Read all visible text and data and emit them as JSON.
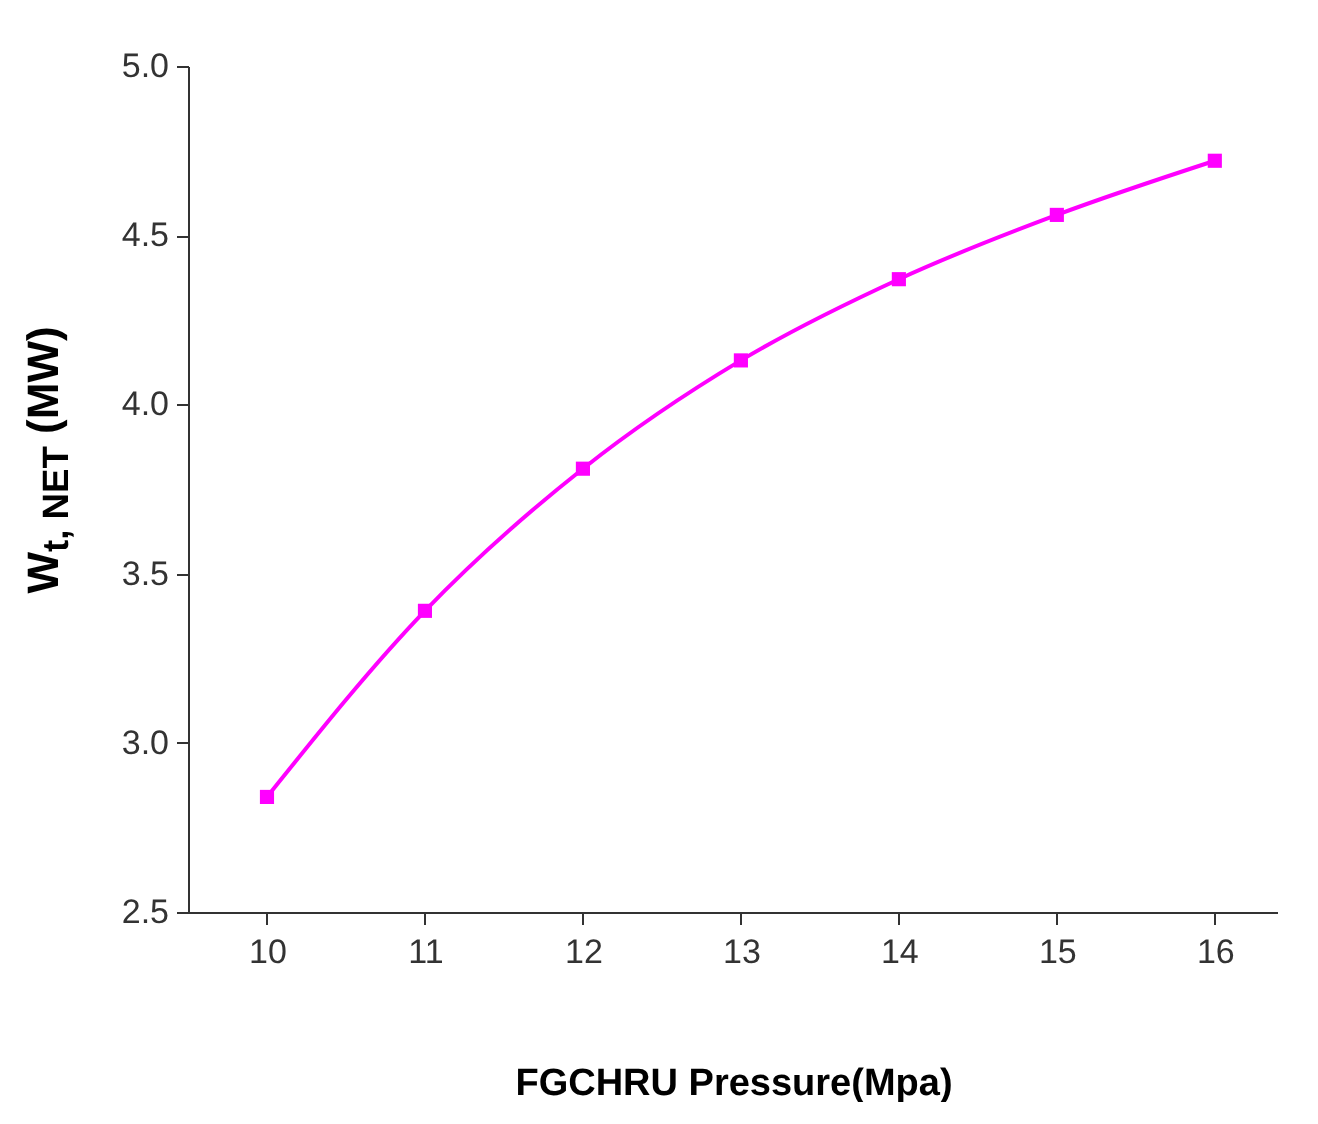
{
  "chart_data": {
    "type": "line",
    "xlabel": "FGCHRU Pressure(Mpa)",
    "ylabel": "W$_{t, NET}$ (MW)",
    "x": [
      10,
      11,
      12,
      13,
      14,
      15,
      16
    ],
    "series": [
      {
        "color": "#ff00ff",
        "values": [
          2.84,
          3.39,
          3.81,
          4.13,
          4.37,
          4.56,
          4.72
        ]
      }
    ],
    "xlim": [
      9.5,
      16.4
    ],
    "xticks": [
      10,
      11,
      12,
      13,
      14,
      15,
      16
    ],
    "ylim": [
      2.5,
      5.0
    ],
    "yticks": [
      {
        "value": 2.5,
        "label": "2.5"
      },
      {
        "value": 3.0,
        "label": "3.0"
      },
      {
        "value": 3.5,
        "label": "3.5"
      },
      {
        "value": 4.0,
        "label": "4.0"
      },
      {
        "value": 4.5,
        "label": "4.5"
      },
      {
        "value": 5.0,
        "label": "5.0"
      }
    ],
    "marker": "square",
    "line_style": "solid"
  }
}
